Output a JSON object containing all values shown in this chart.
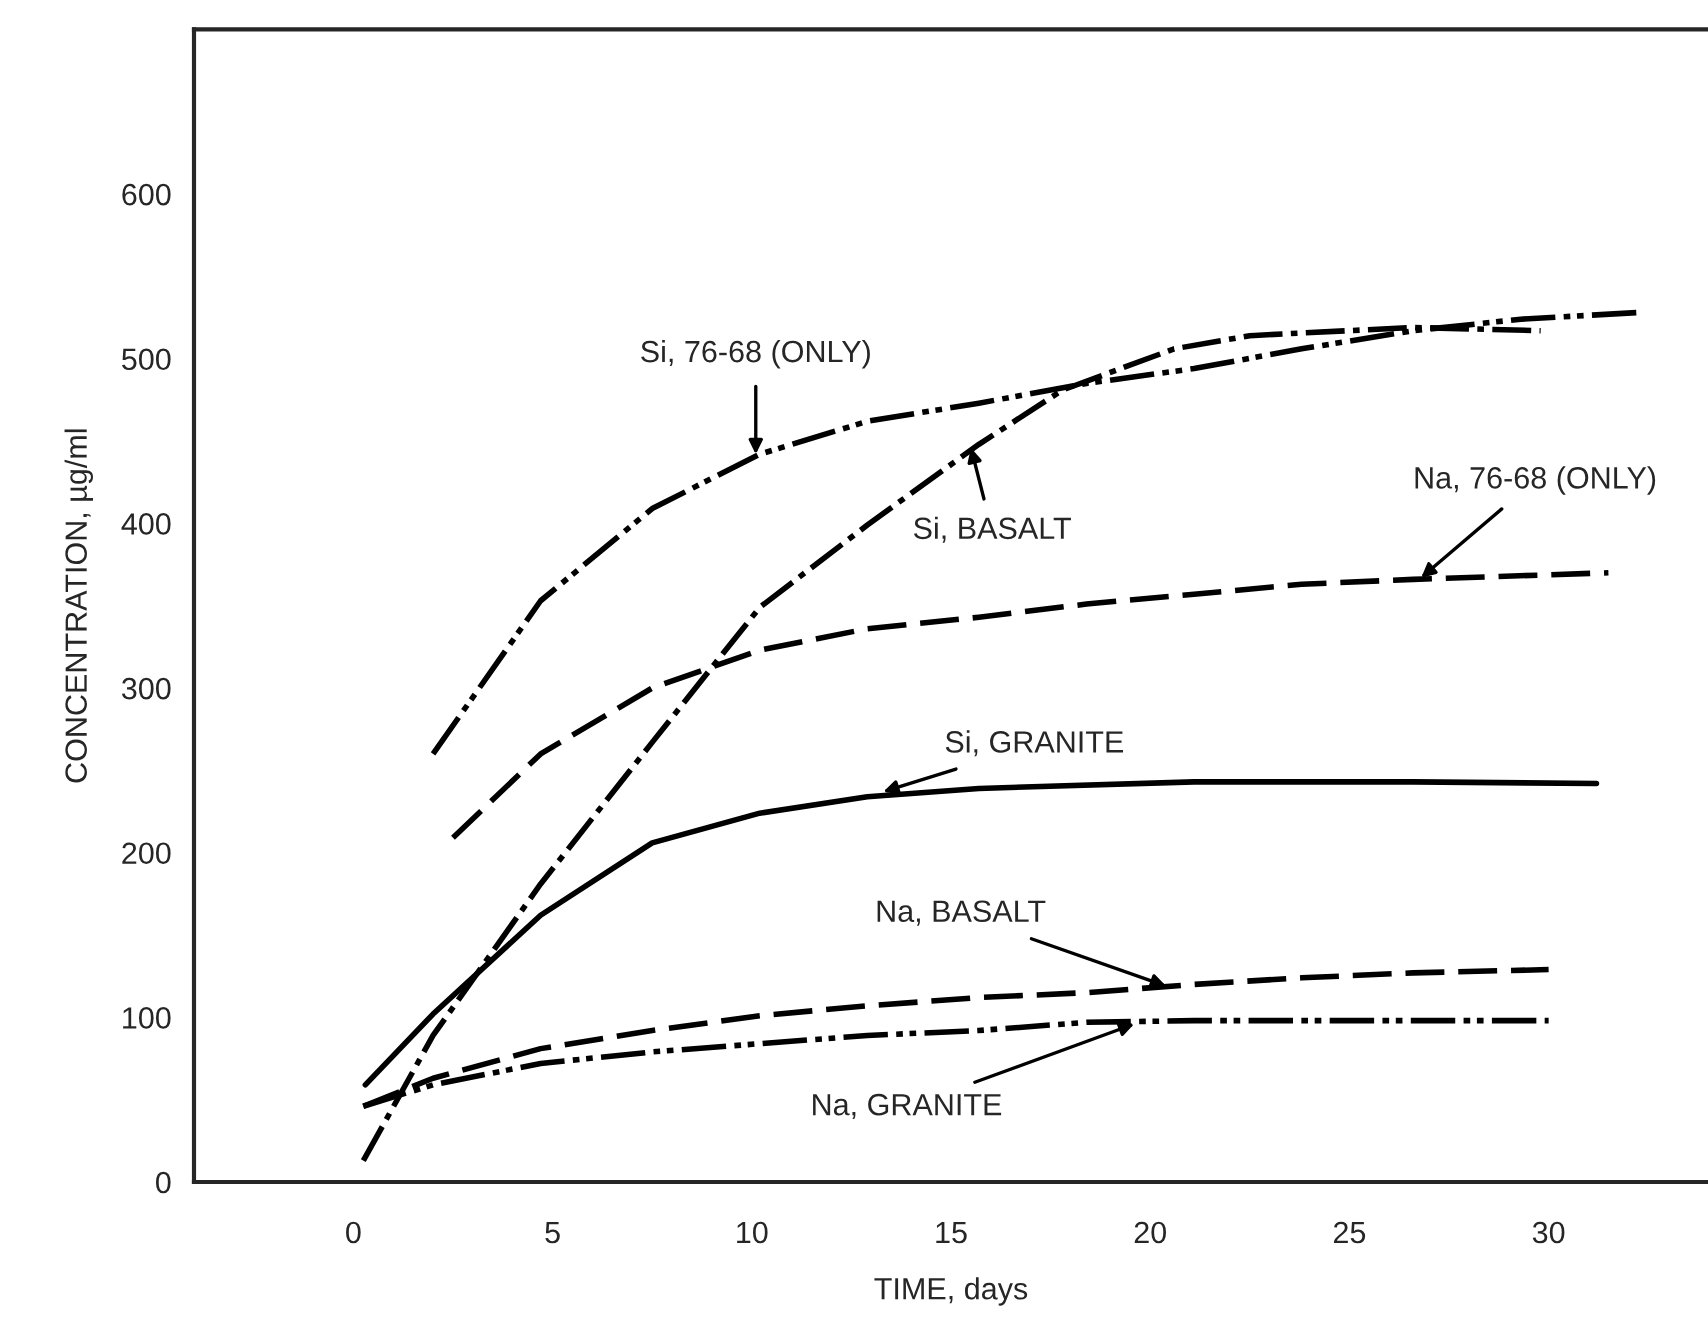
{
  "chart_data": {
    "type": "line",
    "xlabel": "TIME, days",
    "ylabel": "CONCENTRATION, µg/ml",
    "xlim": [
      -4,
      34
    ],
    "ylim": [
      0,
      700
    ],
    "xticks": [
      0,
      5,
      10,
      15,
      20,
      25,
      30
    ],
    "yticks": [
      0,
      100,
      200,
      300,
      400,
      500,
      600
    ],
    "grid": false,
    "legend": false,
    "marker": "none",
    "series": [
      {
        "color": "#000000",
        "line_style": "dashdotdot",
        "x": [
          2.0,
          4.7,
          7.5,
          10.2,
          12.9,
          15.7,
          18.4,
          21.1,
          23.8,
          26.6,
          29.3,
          32.2
        ],
        "values": [
          260,
          353,
          409,
          442,
          462,
          473,
          485,
          494,
          506,
          517,
          524,
          528
        ]
      },
      {
        "color": "#000000",
        "line_style": "dashdot",
        "x": [
          0.25,
          2.0,
          4.7,
          7.5,
          10.2,
          12.9,
          15.7,
          17.8,
          20.6,
          22.5,
          26.6,
          29.8
        ],
        "values": [
          13,
          89,
          181,
          267,
          349,
          399,
          448,
          481,
          506,
          514,
          519,
          517
        ]
      },
      {
        "color": "#000000",
        "line_style": "dashed",
        "x": [
          2.5,
          4.7,
          7.5,
          10.2,
          12.9,
          15.7,
          18.4,
          21.1,
          23.8,
          26.6,
          31.5
        ],
        "values": [
          209,
          260,
          300,
          323,
          336,
          343,
          351,
          357,
          363,
          366,
          370
        ]
      },
      {
        "color": "#000000",
        "line_style": "solid",
        "x": [
          0.3,
          2.0,
          4.7,
          7.5,
          10.2,
          12.9,
          15.7,
          21.1,
          26.6,
          31.2
        ],
        "values": [
          59,
          102,
          162,
          206,
          224,
          234,
          239,
          243,
          243,
          242
        ]
      },
      {
        "color": "#000000",
        "line_style": "dashed",
        "x": [
          0.25,
          2.0,
          4.7,
          7.5,
          10.2,
          12.9,
          15.7,
          18.4,
          21.1,
          23.8,
          26.6,
          30.0
        ],
        "values": [
          46,
          63,
          81,
          92,
          101,
          107,
          112,
          115,
          120,
          124,
          127,
          129
        ]
      },
      {
        "color": "#000000",
        "line_style": "dashdotdot",
        "x": [
          0.25,
          2.0,
          4.7,
          7.5,
          10.2,
          12.9,
          15.7,
          18.4,
          21.1,
          23.8,
          30.0
        ],
        "values": [
          46,
          59,
          72,
          79,
          84,
          89,
          92,
          97,
          98,
          98,
          98
        ]
      }
    ],
    "annotations": [
      {
        "text": "Si, 76-68 (ONLY)",
        "x": 10.1,
        "y": 442
      },
      {
        "text": "Si, BASALT",
        "x": 15.5,
        "y": 446
      },
      {
        "text": "Na, 76-68 (ONLY)",
        "x": 26.8,
        "y": 367
      },
      {
        "text": "Si, GRANITE",
        "x": 13.3,
        "y": 237
      },
      {
        "text": "Na, BASALT",
        "x": 20.4,
        "y": 119
      },
      {
        "text": "Na, GRANITE",
        "x": 19.6,
        "y": 96
      }
    ]
  }
}
